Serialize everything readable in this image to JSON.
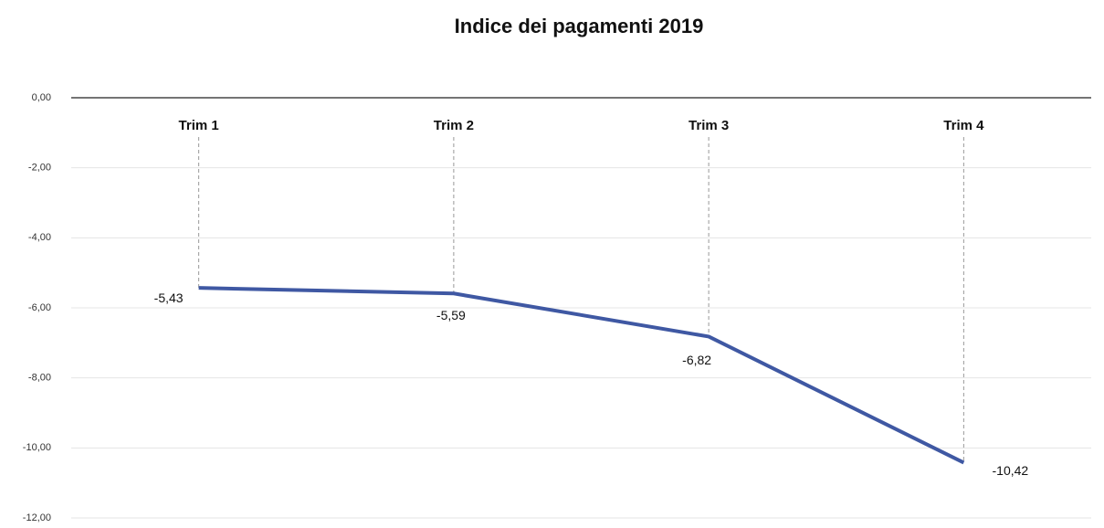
{
  "chart_data": {
    "type": "line",
    "title": "Indice dei pagamenti 2019",
    "categories": [
      "Trim 1",
      "Trim 2",
      "Trim 3",
      "Trim 4"
    ],
    "values": [
      -5.43,
      -5.59,
      -6.82,
      -10.42
    ],
    "value_labels": [
      "-5,43",
      "-5,59",
      "-6,82",
      "-10,42"
    ],
    "color": "#3f58a3",
    "ylim": [
      -12,
      0
    ],
    "yticks": [
      {
        "value": 0,
        "label": "0,00"
      },
      {
        "value": -2,
        "label": "-2,00"
      },
      {
        "value": -4,
        "label": "-4,00"
      },
      {
        "value": -6,
        "label": "-6,00"
      },
      {
        "value": -8,
        "label": "-8,00"
      },
      {
        "value": -10,
        "label": "-10,00"
      },
      {
        "value": -12,
        "label": "-12,00"
      }
    ],
    "grid": true
  }
}
